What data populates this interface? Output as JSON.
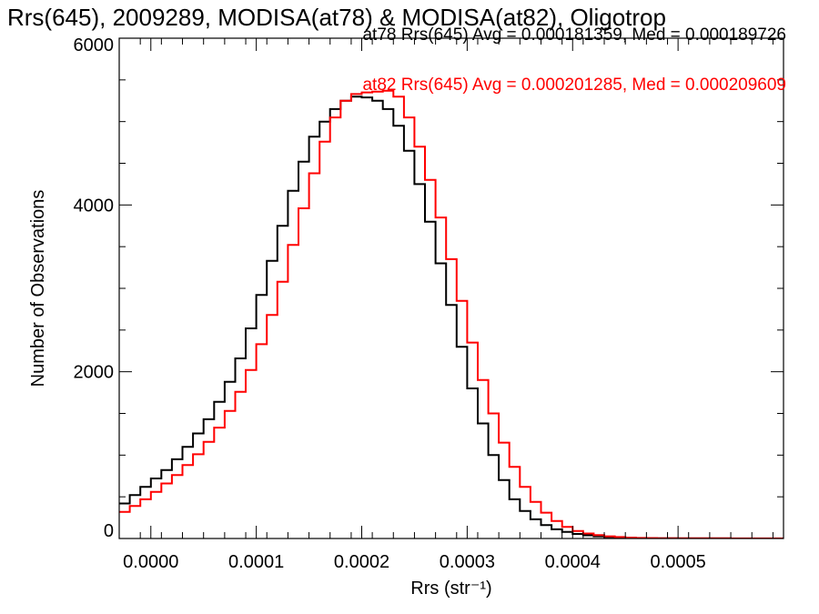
{
  "title": "Rrs(645), 2009289, MODISA(at78) & MODISA(at82), Oligotrop",
  "chart_data": {
    "type": "step-histogram",
    "xlabel": "Rrs (str⁻¹)",
    "ylabel": "Number of Observations",
    "xlim": [
      -3e-05,
      0.0006
    ],
    "ylim": [
      0,
      6000
    ],
    "xticks": [
      0.0,
      0.0001,
      0.0002,
      0.0003,
      0.0004,
      0.0005
    ],
    "xtick_labels": [
      "0.0000",
      "0.0001",
      "0.0002",
      "0.0003",
      "0.0004",
      "0.0005"
    ],
    "yticks": [
      0,
      2000,
      4000,
      6000
    ],
    "ytick_labels": [
      "0",
      "2000",
      "4000",
      "6000"
    ],
    "grid": false,
    "legend_placement": "top-right",
    "series": [
      {
        "name": "at78",
        "color": "#000000",
        "label": "at78 Rrs(645) Avg = 0.000181359, Med = 0.000189726",
        "x": [
          -3e-05,
          -2e-05,
          -1e-05,
          0.0,
          1e-05,
          2e-05,
          3e-05,
          4e-05,
          5e-05,
          6e-05,
          7e-05,
          8e-05,
          9e-05,
          0.0001,
          0.00011,
          0.00012,
          0.00013,
          0.00014,
          0.00015,
          0.00016,
          0.00017,
          0.00018,
          0.00019,
          0.0002,
          0.00021,
          0.00022,
          0.00023,
          0.00024,
          0.00025,
          0.00026,
          0.00027,
          0.00028,
          0.00029,
          0.0003,
          0.00031,
          0.00032,
          0.00033,
          0.00034,
          0.00035,
          0.00036,
          0.00037,
          0.00038,
          0.00039,
          0.0004,
          0.00041,
          0.00042,
          0.00043,
          0.00044,
          0.00045,
          0.00046,
          0.00047,
          0.00048,
          0.0005,
          0.00055,
          0.0006
        ],
        "values": [
          420,
          520,
          620,
          720,
          820,
          950,
          1100,
          1260,
          1430,
          1640,
          1880,
          2160,
          2520,
          2920,
          3330,
          3750,
          4170,
          4520,
          4820,
          5000,
          5150,
          5250,
          5300,
          5290,
          5250,
          5150,
          4950,
          4650,
          4250,
          3800,
          3300,
          2800,
          2300,
          1800,
          1380,
          1000,
          700,
          470,
          330,
          230,
          160,
          110,
          80,
          55,
          38,
          26,
          18,
          12,
          8,
          5,
          3,
          2,
          1,
          0,
          0
        ]
      },
      {
        "name": "at82",
        "color": "#ff0000",
        "label": "at82 Rrs(645) Avg = 0.000201285, Med = 0.000209609",
        "x": [
          -3e-05,
          -2e-05,
          -1e-05,
          0.0,
          1e-05,
          2e-05,
          3e-05,
          4e-05,
          5e-05,
          6e-05,
          7e-05,
          8e-05,
          9e-05,
          0.0001,
          0.00011,
          0.00012,
          0.00013,
          0.00014,
          0.00015,
          0.00016,
          0.00017,
          0.00018,
          0.00019,
          0.0002,
          0.00021,
          0.00022,
          0.00023,
          0.00024,
          0.00025,
          0.00026,
          0.00027,
          0.00028,
          0.00029,
          0.0003,
          0.00031,
          0.00032,
          0.00033,
          0.00034,
          0.00035,
          0.00036,
          0.00037,
          0.00038,
          0.00039,
          0.0004,
          0.00041,
          0.00042,
          0.00043,
          0.00044,
          0.00045,
          0.00046,
          0.00047,
          0.00048,
          0.0005,
          0.00055,
          0.0006
        ],
        "values": [
          320,
          390,
          470,
          560,
          660,
          760,
          880,
          1010,
          1160,
          1330,
          1530,
          1760,
          2020,
          2330,
          2680,
          3080,
          3520,
          3960,
          4380,
          4760,
          5050,
          5250,
          5330,
          5350,
          5360,
          5370,
          5300,
          5050,
          4700,
          4300,
          3850,
          3350,
          2850,
          2350,
          1900,
          1500,
          1150,
          860,
          620,
          440,
          310,
          210,
          140,
          90,
          60,
          40,
          26,
          17,
          11,
          7,
          5,
          3,
          2,
          1,
          0
        ]
      }
    ]
  }
}
